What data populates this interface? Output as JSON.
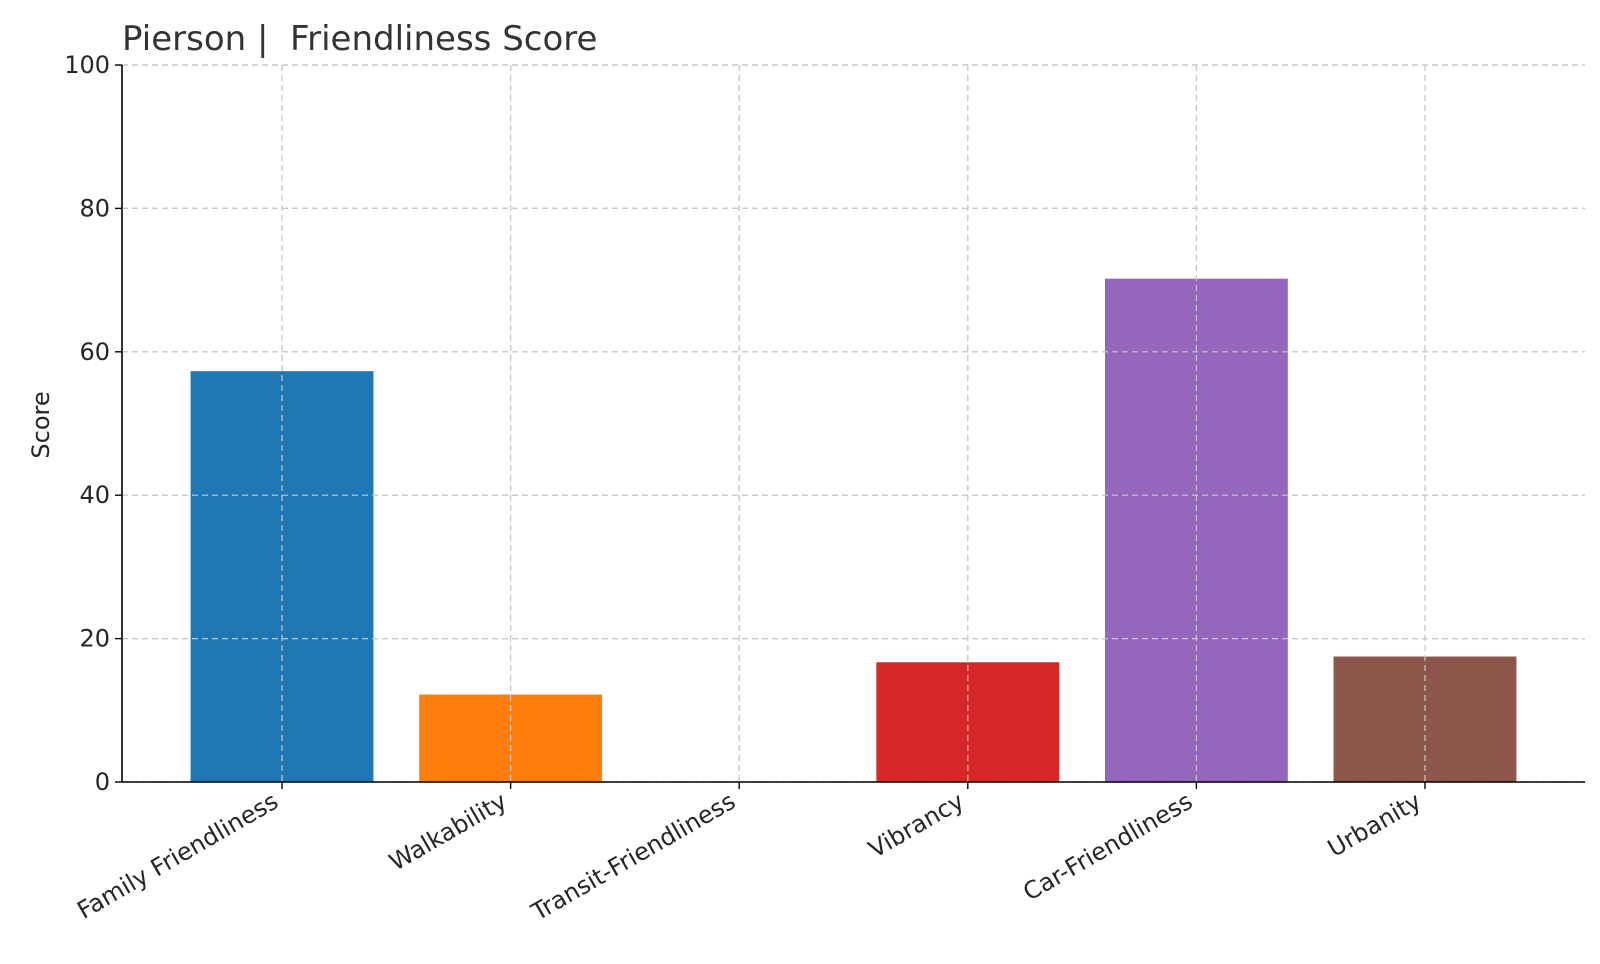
{
  "chart_data": {
    "type": "bar",
    "title": "Pierson |  Friendliness Score",
    "xlabel": "",
    "ylabel": "Score",
    "ylim": [
      0,
      100
    ],
    "yticks": [
      0,
      20,
      40,
      60,
      80,
      100
    ],
    "grid": true,
    "legend": "none",
    "categories": [
      "Family Friendliness",
      "Walkability",
      "Transit-Friendliness",
      "Vibrancy",
      "Car-Friendliness",
      "Urbanity"
    ],
    "values": [
      57.3,
      12.2,
      0,
      16.7,
      70.2,
      17.5
    ],
    "colors": [
      "#1f77b4",
      "#ff7f0e",
      "#2ca02c",
      "#d62728",
      "#9467bd",
      "#8c564b"
    ]
  }
}
